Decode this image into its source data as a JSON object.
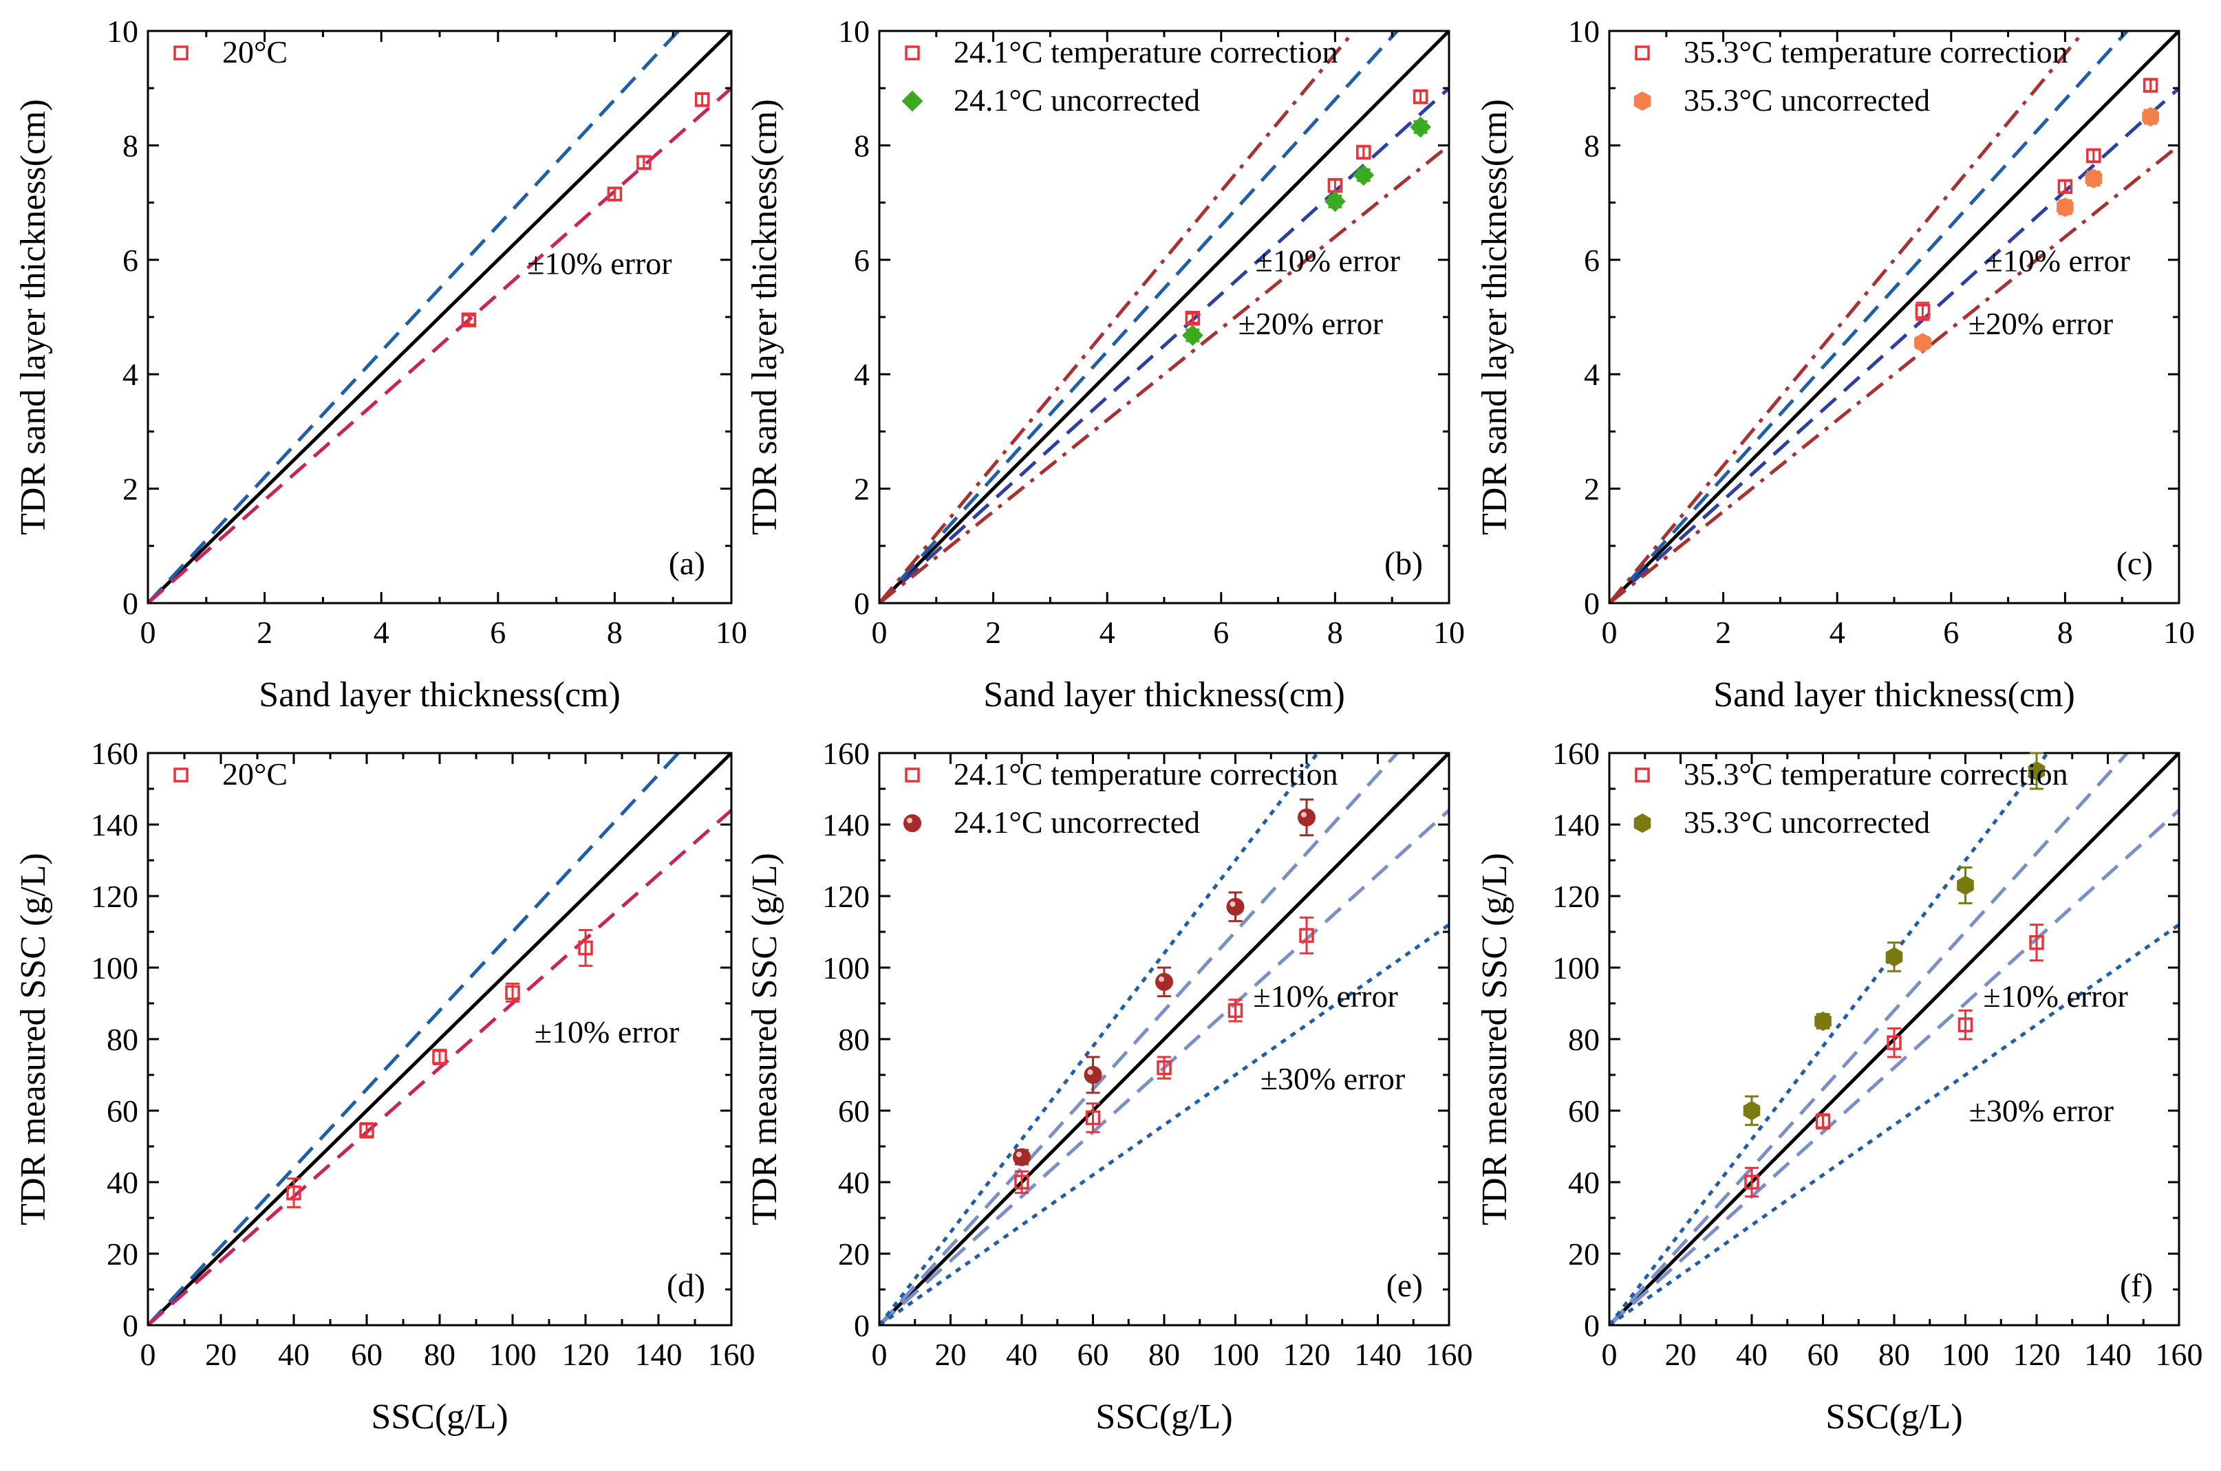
{
  "chart_data": [
    {
      "type": "scatter",
      "panel_label": "(a)",
      "xlabel": "Sand layer thickness(cm)",
      "ylabel": "TDR sand layer thickness(cm)",
      "xlim": [
        0,
        10
      ],
      "ylim": [
        0,
        10
      ],
      "xticks": [
        0,
        2,
        4,
        6,
        8,
        10
      ],
      "yticks": [
        0,
        2,
        4,
        6,
        8,
        10
      ],
      "series": [
        {
          "name": "20°C",
          "marker": "open-square",
          "color": "#e8333a",
          "x": [
            5.5,
            8.0,
            8.5,
            9.5
          ],
          "y": [
            4.95,
            7.15,
            7.7,
            8.8
          ],
          "err": [
            0.08,
            0.1,
            0.1,
            0.1
          ]
        }
      ],
      "lines": [
        {
          "kind": "identity",
          "slope": 1.0,
          "color": "#000000",
          "style": "solid"
        },
        {
          "kind": "upper-10",
          "slope": 1.1,
          "color": "#1f5fa8",
          "style": "dash"
        },
        {
          "kind": "lower-10",
          "slope": 0.9,
          "color": "#c8245a",
          "style": "dash"
        }
      ],
      "annotations": [
        {
          "text": "±10% error",
          "x": 6.5,
          "y": 5.75
        }
      ]
    },
    {
      "type": "scatter",
      "panel_label": "(b)",
      "xlabel": "Sand layer thickness(cm)",
      "ylabel": "TDR sand layer thickness(cm)",
      "xlim": [
        0,
        10
      ],
      "ylim": [
        0,
        10
      ],
      "xticks": [
        0,
        2,
        4,
        6,
        8,
        10
      ],
      "yticks": [
        0,
        2,
        4,
        6,
        8,
        10
      ],
      "series": [
        {
          "name": "24.1°C temperature correction",
          "marker": "open-square",
          "color": "#e8333a",
          "x": [
            5.5,
            8.0,
            8.5,
            9.5
          ],
          "y": [
            4.98,
            7.3,
            7.88,
            8.85
          ],
          "err": [
            0.08,
            0.1,
            0.1,
            0.1
          ]
        },
        {
          "name": "24.1°C uncorrected",
          "marker": "filled-diamond",
          "color": "#3aaa1e",
          "x": [
            5.5,
            8.0,
            8.5,
            9.5
          ],
          "y": [
            4.68,
            7.02,
            7.48,
            8.32
          ],
          "err": [
            0.1,
            0.1,
            0.1,
            0.1
          ]
        }
      ],
      "lines": [
        {
          "kind": "identity",
          "slope": 1.0,
          "color": "#000000",
          "style": "solid"
        },
        {
          "kind": "upper-10",
          "slope": 1.1,
          "color": "#1f5fa8",
          "style": "dash"
        },
        {
          "kind": "lower-10",
          "slope": 0.9,
          "color": "#2e3fa3",
          "style": "dash"
        },
        {
          "kind": "upper-20",
          "slope": 1.2,
          "color": "#a83232",
          "style": "dashdot"
        },
        {
          "kind": "lower-20",
          "slope": 0.8,
          "color": "#a83232",
          "style": "dashdot"
        }
      ],
      "annotations": [
        {
          "text": "±10% error",
          "x": 6.6,
          "y": 5.8
        },
        {
          "text": "±20% error",
          "x": 6.3,
          "y": 4.7
        }
      ]
    },
    {
      "type": "scatter",
      "panel_label": "(c)",
      "xlabel": "Sand layer thickness(cm)",
      "ylabel": "TDR sand layer thickness(cm)",
      "xlim": [
        0,
        10
      ],
      "ylim": [
        0,
        10
      ],
      "xticks": [
        0,
        2,
        4,
        6,
        8,
        10
      ],
      "yticks": [
        0,
        2,
        4,
        6,
        8,
        10
      ],
      "series": [
        {
          "name": "35.3°C temperature correction",
          "marker": "open-square",
          "color": "#e8333a",
          "x": [
            5.5,
            8.0,
            8.5,
            9.5
          ],
          "y": [
            5.1,
            7.28,
            7.82,
            9.05
          ],
          "err": [
            0.15,
            0.1,
            0.1,
            0.1
          ]
        },
        {
          "name": "35.3°C uncorrected",
          "marker": "filled-hexagon",
          "color": "#f57f4a",
          "x": [
            5.5,
            8.0,
            8.5,
            9.5
          ],
          "y": [
            4.55,
            6.92,
            7.42,
            8.5
          ],
          "err": [
            0.1,
            0.12,
            0.12,
            0.12
          ]
        }
      ],
      "lines": [
        {
          "kind": "identity",
          "slope": 1.0,
          "color": "#000000",
          "style": "solid"
        },
        {
          "kind": "upper-10",
          "slope": 1.1,
          "color": "#1f5fa8",
          "style": "dash"
        },
        {
          "kind": "lower-10",
          "slope": 0.9,
          "color": "#2e3fa3",
          "style": "dash"
        },
        {
          "kind": "upper-20",
          "slope": 1.2,
          "color": "#a83232",
          "style": "dashdot"
        },
        {
          "kind": "lower-20",
          "slope": 0.8,
          "color": "#a83232",
          "style": "dashdot"
        }
      ],
      "annotations": [
        {
          "text": "±10% error",
          "x": 6.6,
          "y": 5.8
        },
        {
          "text": "±20% error",
          "x": 6.3,
          "y": 4.7
        }
      ]
    },
    {
      "type": "scatter",
      "panel_label": "(d)",
      "xlabel": "SSC(g/L)",
      "ylabel": "TDR measured SSC (g/L)",
      "xlim": [
        0,
        160
      ],
      "ylim": [
        0,
        160
      ],
      "xticks": [
        0,
        20,
        40,
        60,
        80,
        100,
        120,
        140,
        160
      ],
      "yticks": [
        0,
        20,
        40,
        60,
        80,
        100,
        120,
        140,
        160
      ],
      "series": [
        {
          "name": "20°C",
          "marker": "open-square",
          "color": "#e8333a",
          "x": [
            40,
            60,
            80,
            100,
            120
          ],
          "y": [
            37,
            54.5,
            75,
            93,
            105.5
          ],
          "err": [
            4,
            2,
            2,
            2.5,
            5
          ]
        }
      ],
      "lines": [
        {
          "kind": "identity",
          "slope": 1.0,
          "color": "#000000",
          "style": "solid"
        },
        {
          "kind": "upper-10",
          "slope": 1.1,
          "color": "#1f5fa8",
          "style": "dash"
        },
        {
          "kind": "lower-10",
          "slope": 0.9,
          "color": "#c8245a",
          "style": "dash"
        }
      ],
      "annotations": [
        {
          "text": "±10% error",
          "x": 106,
          "y": 79
        }
      ]
    },
    {
      "type": "scatter",
      "panel_label": "(e)",
      "xlabel": "SSC(g/L)",
      "ylabel": "TDR measured SSC (g/L)",
      "xlim": [
        0,
        160
      ],
      "ylim": [
        0,
        160
      ],
      "xticks": [
        0,
        20,
        40,
        60,
        80,
        100,
        120,
        140,
        160
      ],
      "yticks": [
        0,
        20,
        40,
        60,
        80,
        100,
        120,
        140,
        160
      ],
      "series": [
        {
          "name": "24.1°C temperature correction",
          "marker": "open-square",
          "color": "#e8333a",
          "x": [
            40,
            60,
            80,
            100,
            120
          ],
          "y": [
            40,
            58,
            72,
            88,
            109
          ],
          "err": [
            3,
            4,
            3,
            3,
            5
          ]
        },
        {
          "name": "24.1°C uncorrected",
          "marker": "filled-sphere",
          "color": "#a52a2a",
          "x": [
            40,
            60,
            80,
            100,
            120
          ],
          "y": [
            47,
            70,
            96,
            117,
            142
          ],
          "err": [
            2,
            5,
            4,
            4,
            5
          ]
        }
      ],
      "lines": [
        {
          "kind": "identity",
          "slope": 1.0,
          "color": "#000000",
          "style": "solid"
        },
        {
          "kind": "upper-10",
          "slope": 1.1,
          "color": "#7a8fc7",
          "style": "dash"
        },
        {
          "kind": "lower-10",
          "slope": 0.9,
          "color": "#7a8fc7",
          "style": "dash"
        },
        {
          "kind": "upper-30",
          "slope": 1.3,
          "color": "#1f5fa8",
          "style": "dot"
        },
        {
          "kind": "lower-30",
          "slope": 0.7,
          "color": "#1f5fa8",
          "style": "dot"
        }
      ],
      "annotations": [
        {
          "text": "±10% error",
          "x": 105,
          "y": 89
        },
        {
          "text": "±30% error",
          "x": 107,
          "y": 66
        }
      ]
    },
    {
      "type": "scatter",
      "panel_label": "(f)",
      "xlabel": "SSC(g/L)",
      "ylabel": "TDR measured SSC (g/L)",
      "xlim": [
        0,
        160
      ],
      "ylim": [
        0,
        160
      ],
      "xticks": [
        0,
        20,
        40,
        60,
        80,
        100,
        120,
        140,
        160
      ],
      "yticks": [
        0,
        20,
        40,
        60,
        80,
        100,
        120,
        140,
        160
      ],
      "series": [
        {
          "name": "35.3°C temperature correction",
          "marker": "open-square",
          "color": "#e8333a",
          "x": [
            40,
            60,
            80,
            100,
            120
          ],
          "y": [
            40,
            57,
            79,
            84,
            107
          ],
          "err": [
            4,
            2,
            4,
            4,
            5
          ]
        },
        {
          "name": "35.3°C uncorrected",
          "marker": "filled-hexagon",
          "color": "#7a7a10",
          "x": [
            40,
            60,
            80,
            100,
            120
          ],
          "y": [
            60,
            85,
            103,
            123,
            155
          ],
          "err": [
            4,
            2,
            4,
            5,
            5
          ]
        }
      ],
      "lines": [
        {
          "kind": "identity",
          "slope": 1.0,
          "color": "#000000",
          "style": "solid"
        },
        {
          "kind": "upper-10",
          "slope": 1.1,
          "color": "#7a8fc7",
          "style": "dash"
        },
        {
          "kind": "lower-10",
          "slope": 0.9,
          "color": "#7a8fc7",
          "style": "dash"
        },
        {
          "kind": "upper-30",
          "slope": 1.3,
          "color": "#1f5fa8",
          "style": "dot"
        },
        {
          "kind": "lower-30",
          "slope": 0.7,
          "color": "#1f5fa8",
          "style": "dot"
        }
      ],
      "annotations": [
        {
          "text": "±10% error",
          "x": 105,
          "y": 89
        },
        {
          "text": "±30% error",
          "x": 101,
          "y": 57
        }
      ]
    }
  ]
}
